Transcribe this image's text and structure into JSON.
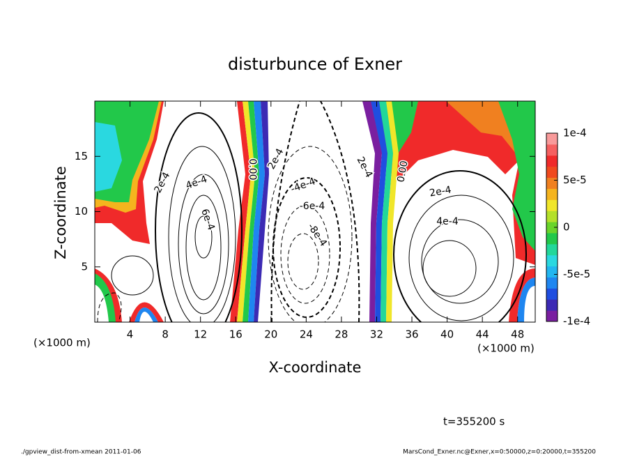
{
  "chart_data": {
    "type": "contour",
    "title": "disturbunce of Exner",
    "x_label": "X-coordinate",
    "y_label": "Z-coordinate",
    "x_unit_labels": [
      "(×1000 m)",
      "(×1000 m)"
    ],
    "xlim": [
      0,
      50
    ],
    "ylim": [
      0,
      20
    ],
    "xticks": [
      4,
      8,
      12,
      16,
      20,
      24,
      28,
      32,
      36,
      40,
      44,
      48
    ],
    "yticks": [
      5,
      10,
      15
    ],
    "colorbar": {
      "clim": [
        -0.0001,
        0.0001
      ],
      "ticks": [
        {
          "value": 0.0001,
          "label": "1e-4"
        },
        {
          "value": 5e-05,
          "label": "5e-5"
        },
        {
          "value": 0,
          "label": "0"
        },
        {
          "value": -5e-05,
          "label": "-5e-5"
        },
        {
          "value": -0.0001,
          "label": "-1e-4"
        }
      ],
      "colors": [
        "#7a1fa0",
        "#3c2ab4",
        "#1f4ee0",
        "#1f86f0",
        "#22b6f0",
        "#2ad8e0",
        "#22d79a",
        "#22c84a",
        "#6ad42a",
        "#b4e02a",
        "#f0e62a",
        "#f5b41e",
        "#f08020",
        "#f04a1e",
        "#f02a2a",
        "#f56060",
        "#f89a9a"
      ]
    },
    "contour_labels": [
      "2e-4",
      "4e-4",
      "6e-4",
      "0.00",
      "2e-4",
      "-4e-4",
      "-6e-4",
      "-8e-4",
      "2e-4",
      "0.00",
      "2e-4",
      "4e-4"
    ],
    "time_label": "t=355200 s",
    "footer_left": "./gpview_dist-from-xmean  2011-01-06",
    "footer_right": "MarsCond_Exner.nc@Exner,x=0:50000,z=0:20000,t=355200"
  }
}
